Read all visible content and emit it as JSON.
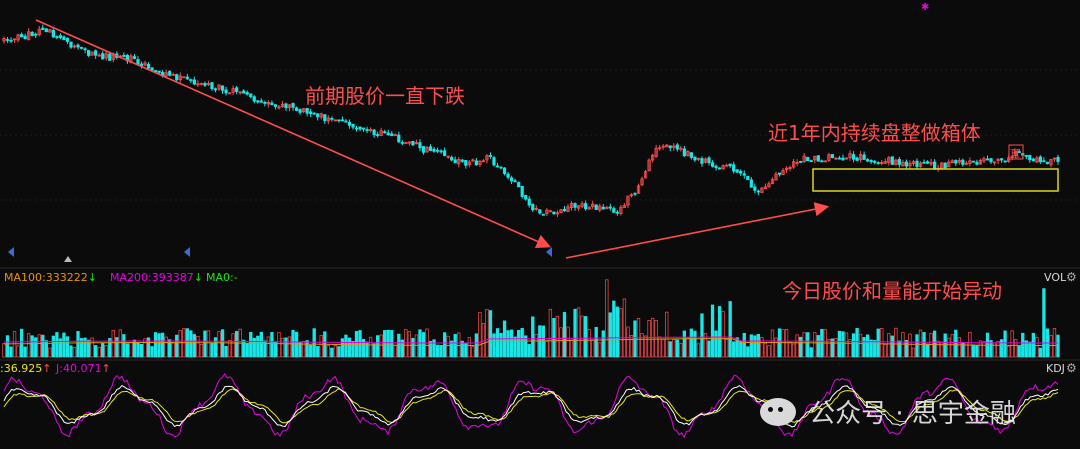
{
  "annotations": {
    "downtrend": "前期股价一直下跌",
    "box": "近1年内持续盘整做箱体",
    "volume_move": "今日股价和量能开始异动"
  },
  "volume_panel": {
    "ma100": "MA100:333222",
    "ma200": "MA200:393387",
    "ma0": "MA0:-",
    "tag": "VOL"
  },
  "kdj_panel": {
    "d_value": ":36.925",
    "j_value": "J:40.071",
    "tag": "KDJ"
  },
  "marker_label": "直",
  "watermark": "公众号 · 思宇金融",
  "colors": {
    "up": "#ff4d4d",
    "down": "#19e6e6",
    "annotation": "#ff4d4d",
    "box": "#e6e61a",
    "ma100": "#e69500",
    "ma200": "#e600e6",
    "ma0": "#19e619",
    "k_line": "#ffffff",
    "d_line": "#e6e61a",
    "j_line": "#e600e6"
  },
  "chart_data": {
    "type": "candlestick",
    "price_path": [
      {
        "t": 0,
        "p": 88
      },
      {
        "t": 4,
        "p": 93
      },
      {
        "t": 8,
        "p": 82
      },
      {
        "t": 12,
        "p": 80
      },
      {
        "t": 16,
        "p": 72
      },
      {
        "t": 20,
        "p": 68
      },
      {
        "t": 24,
        "p": 62
      },
      {
        "t": 28,
        "p": 58
      },
      {
        "t": 32,
        "p": 52
      },
      {
        "t": 36,
        "p": 47
      },
      {
        "t": 40,
        "p": 40
      },
      {
        "t": 44,
        "p": 33
      },
      {
        "t": 46,
        "p": 37
      },
      {
        "t": 48,
        "p": 28
      },
      {
        "t": 50,
        "p": 14
      },
      {
        "t": 52,
        "p": 12
      },
      {
        "t": 54,
        "p": 16
      },
      {
        "t": 56,
        "p": 15
      },
      {
        "t": 58,
        "p": 12
      },
      {
        "t": 60,
        "p": 22
      },
      {
        "t": 62,
        "p": 42
      },
      {
        "t": 64,
        "p": 40
      },
      {
        "t": 66,
        "p": 35
      },
      {
        "t": 68,
        "p": 33
      },
      {
        "t": 70,
        "p": 30
      },
      {
        "t": 71,
        "p": 24
      },
      {
        "t": 72,
        "p": 22
      },
      {
        "t": 74,
        "p": 32
      },
      {
        "t": 76,
        "p": 36
      },
      {
        "t": 80,
        "p": 37
      },
      {
        "t": 84,
        "p": 35
      },
      {
        "t": 88,
        "p": 33
      },
      {
        "t": 92,
        "p": 34
      },
      {
        "t": 95,
        "p": 36
      },
      {
        "t": 96,
        "p": 40
      },
      {
        "t": 98,
        "p": 35
      },
      {
        "t": 100,
        "p": 35
      }
    ],
    "volume": "unlabeled bars; last bar is a volume spike",
    "indicator": "KDJ oscillator (K, D, J lines)"
  }
}
